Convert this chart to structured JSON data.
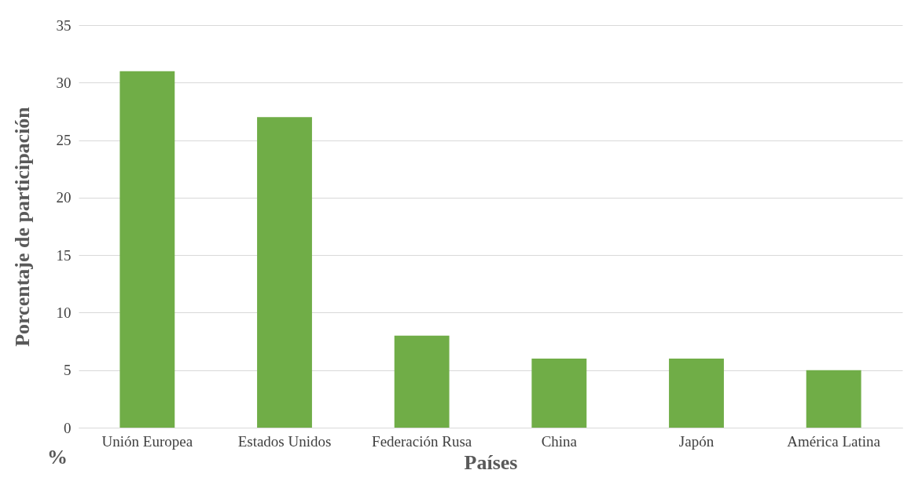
{
  "chart_data": {
    "type": "bar",
    "xlabel": "Países",
    "ylabel": "Porcentaje de participación",
    "categories": [
      "Unión Europea",
      "Estados Unidos",
      "Federación Rusa",
      "China",
      "Japón",
      "América Latina"
    ],
    "values": [
      31,
      27,
      8,
      6,
      6,
      5
    ],
    "color": "#70ad47",
    "ylim": [
      0,
      35
    ],
    "yticks": [
      0,
      5,
      10,
      15,
      20,
      25,
      30,
      35
    ],
    "grid": "y",
    "annotations": [
      "%"
    ]
  }
}
